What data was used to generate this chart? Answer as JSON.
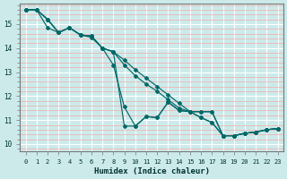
{
  "xlabel": "Humidex (Indice chaleur)",
  "bg_color": "#cceaea",
  "grid_color_major": "#ffffff",
  "grid_color_minor": "#f5aaaa",
  "line_color": "#006868",
  "xlim": [
    -0.5,
    23.5
  ],
  "ylim": [
    9.7,
    15.85
  ],
  "xticks": [
    0,
    1,
    2,
    3,
    4,
    5,
    6,
    7,
    8,
    9,
    10,
    11,
    12,
    13,
    14,
    15,
    16,
    17,
    18,
    19,
    20,
    21,
    22,
    23
  ],
  "yticks": [
    10,
    11,
    12,
    13,
    14,
    15
  ],
  "series": [
    {
      "x": [
        0,
        1,
        2,
        3,
        4,
        5,
        6,
        7,
        8,
        9,
        10,
        11,
        12,
        13,
        14,
        15,
        16,
        17,
        18,
        19,
        20,
        21,
        22,
        23
      ],
      "y": [
        15.6,
        15.6,
        15.2,
        14.65,
        14.85,
        14.55,
        14.5,
        14.0,
        13.85,
        10.75,
        10.75,
        11.15,
        11.1,
        11.75,
        11.4,
        11.35,
        11.35,
        11.35,
        10.35,
        10.35,
        10.45,
        10.5,
        10.6,
        10.65
      ]
    },
    {
      "x": [
        0,
        1,
        2,
        3,
        4,
        5,
        6,
        7,
        8,
        9,
        10,
        11,
        12,
        13,
        14,
        15,
        16,
        17,
        18,
        19,
        20,
        21,
        22,
        23
      ],
      "y": [
        15.6,
        15.6,
        14.85,
        14.65,
        14.85,
        14.55,
        14.45,
        14.0,
        13.3,
        11.55,
        10.75,
        11.15,
        11.1,
        11.75,
        11.4,
        11.35,
        11.35,
        11.35,
        10.35,
        10.35,
        10.45,
        10.5,
        10.6,
        10.65
      ]
    },
    {
      "x": [
        0,
        1,
        2,
        3,
        4,
        5,
        6,
        7,
        8,
        9,
        10,
        11,
        12,
        13,
        14,
        15,
        16,
        17,
        18,
        19,
        20,
        21,
        22,
        23
      ],
      "y": [
        15.6,
        15.6,
        15.2,
        14.65,
        14.85,
        14.55,
        14.5,
        14.0,
        13.85,
        13.3,
        12.85,
        12.5,
        12.2,
        11.85,
        11.5,
        11.35,
        11.1,
        10.9,
        10.35,
        10.35,
        10.45,
        10.5,
        10.6,
        10.65
      ]
    },
    {
      "x": [
        0,
        1,
        2,
        3,
        4,
        5,
        6,
        7,
        8,
        9,
        10,
        11,
        12,
        13,
        14,
        15,
        16,
        17,
        18,
        19,
        20,
        21,
        22,
        23
      ],
      "y": [
        15.6,
        15.6,
        15.2,
        14.65,
        14.85,
        14.55,
        14.5,
        14.0,
        13.85,
        13.5,
        13.1,
        12.75,
        12.4,
        12.05,
        11.7,
        11.35,
        11.1,
        10.9,
        10.35,
        10.35,
        10.45,
        10.5,
        10.6,
        10.65
      ]
    }
  ]
}
